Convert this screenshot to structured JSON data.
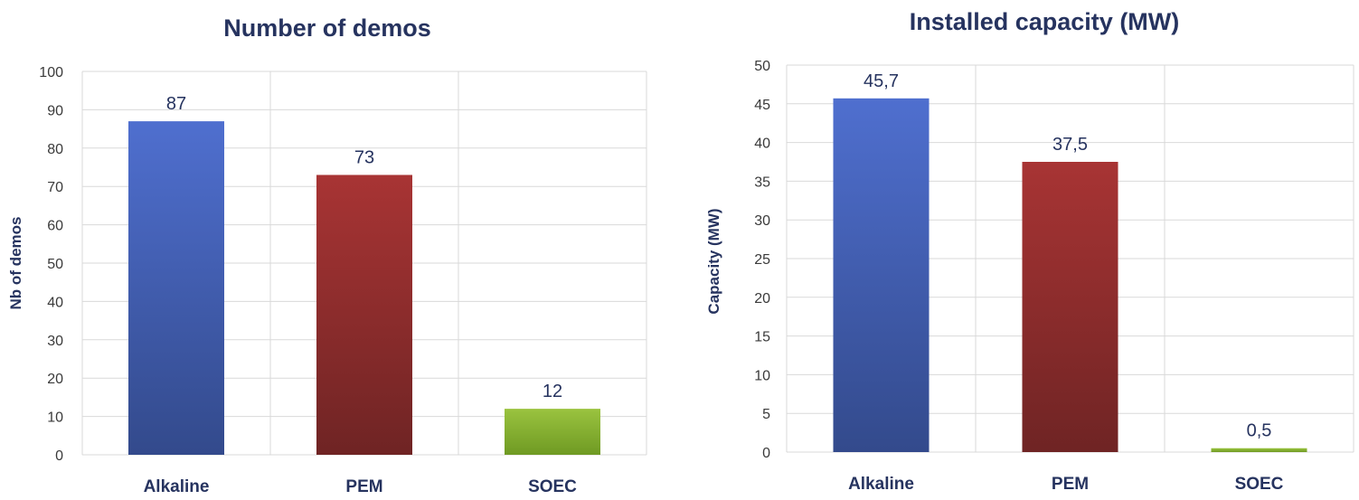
{
  "palette": {
    "Alkaline": [
      "#4f6fcf",
      "#334a8c"
    ],
    "PEM": [
      "#a83434",
      "#6f2424"
    ],
    "SOEC": [
      "#9ac33f",
      "#6f9a23"
    ]
  },
  "chart_data": [
    {
      "type": "bar",
      "title": "Number of demos",
      "xlabel": "",
      "ylabel": "Nb of demos",
      "categories": [
        "Alkaline",
        "PEM",
        "SOEC"
      ],
      "values": [
        87,
        73,
        12
      ],
      "value_labels": [
        "87",
        "73",
        "12"
      ],
      "ylim": [
        0,
        100
      ],
      "ystep": 10,
      "grid": true,
      "legend": "none"
    },
    {
      "type": "bar",
      "title": "Installed capacity (MW)",
      "xlabel": "",
      "ylabel": "Capacity (MW)",
      "categories": [
        "Alkaline",
        "PEM",
        "SOEC"
      ],
      "values": [
        45.7,
        37.5,
        0.5
      ],
      "value_labels": [
        "45,7",
        "37,5",
        "0,5"
      ],
      "ylim": [
        0,
        50
      ],
      "ystep": 5,
      "grid": true,
      "legend": "none"
    }
  ]
}
